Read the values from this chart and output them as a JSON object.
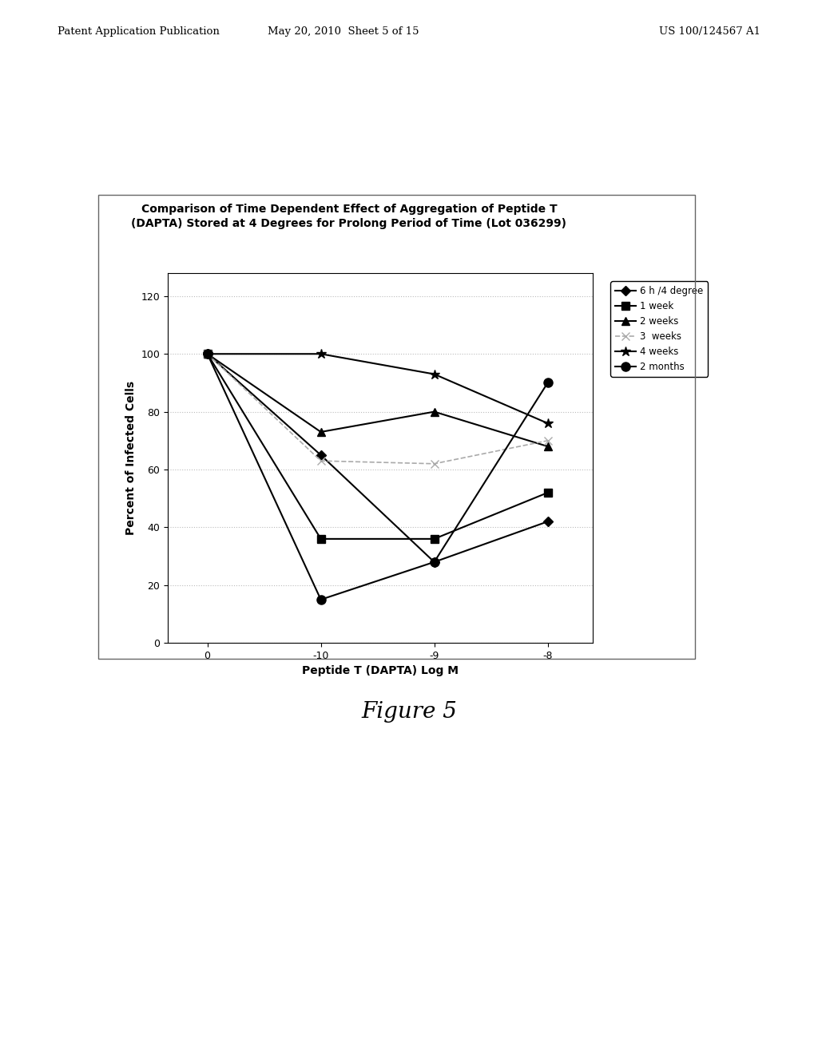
{
  "title_line1": "Comparison of Time Dependent Effect of Aggregation of Peptide T",
  "title_line2": "(DAPTA) Stored at 4 Degrees for Prolong Period of Time (Lot 036299)",
  "xlabel": "Peptide T (DAPTA) Log M",
  "ylabel": "Percent of Infected Cells",
  "yticks": [
    0,
    20,
    40,
    60,
    80,
    100,
    120
  ],
  "yticklabels": [
    "0",
    "20",
    "40",
    "60",
    "80",
    "100",
    "120"
  ],
  "xtick_labels": [
    "0",
    "-10",
    "-9",
    "-8"
  ],
  "series": [
    {
      "label": "6 h /4 degree",
      "x": [
        0,
        1,
        2,
        3
      ],
      "y": [
        100,
        65,
        28,
        42
      ],
      "color": "#000000",
      "linestyle": "-",
      "linewidth": 1.5,
      "marker": "D",
      "markersize": 6,
      "markerfacecolor": "#000000"
    },
    {
      "label": "1 week",
      "x": [
        0,
        1,
        2,
        3
      ],
      "y": [
        100,
        36,
        36,
        52
      ],
      "color": "#000000",
      "linestyle": "-",
      "linewidth": 1.5,
      "marker": "s",
      "markersize": 7,
      "markerfacecolor": "#000000"
    },
    {
      "label": "2 weeks",
      "x": [
        0,
        1,
        2,
        3
      ],
      "y": [
        100,
        73,
        80,
        68
      ],
      "color": "#000000",
      "linestyle": "-",
      "linewidth": 1.5,
      "marker": "^",
      "markersize": 7,
      "markerfacecolor": "#000000"
    },
    {
      "label": "3  weeks",
      "x": [
        0,
        1,
        2,
        3
      ],
      "y": [
        100,
        63,
        62,
        70
      ],
      "color": "#aaaaaa",
      "linestyle": "--",
      "linewidth": 1.2,
      "marker": "x",
      "markersize": 7,
      "markerfacecolor": "#aaaaaa"
    },
    {
      "label": "4 weeks",
      "x": [
        0,
        1,
        2,
        3
      ],
      "y": [
        100,
        100,
        93,
        76
      ],
      "color": "#000000",
      "linestyle": "-",
      "linewidth": 1.5,
      "marker": "*",
      "markersize": 9,
      "markerfacecolor": "#000000"
    },
    {
      "label": "2 months",
      "x": [
        0,
        1,
        2,
        3
      ],
      "y": [
        100,
        15,
        28,
        90
      ],
      "color": "#000000",
      "linestyle": "-",
      "linewidth": 1.5,
      "marker": "o",
      "markersize": 8,
      "markerfacecolor": "#000000"
    }
  ],
  "header_left": "Patent Application Publication",
  "header_mid": "May 20, 2010  Sheet 5 of 15",
  "header_right": "US 100/124567 A1",
  "figure_label": "Figure 5",
  "background_color": "#ffffff"
}
